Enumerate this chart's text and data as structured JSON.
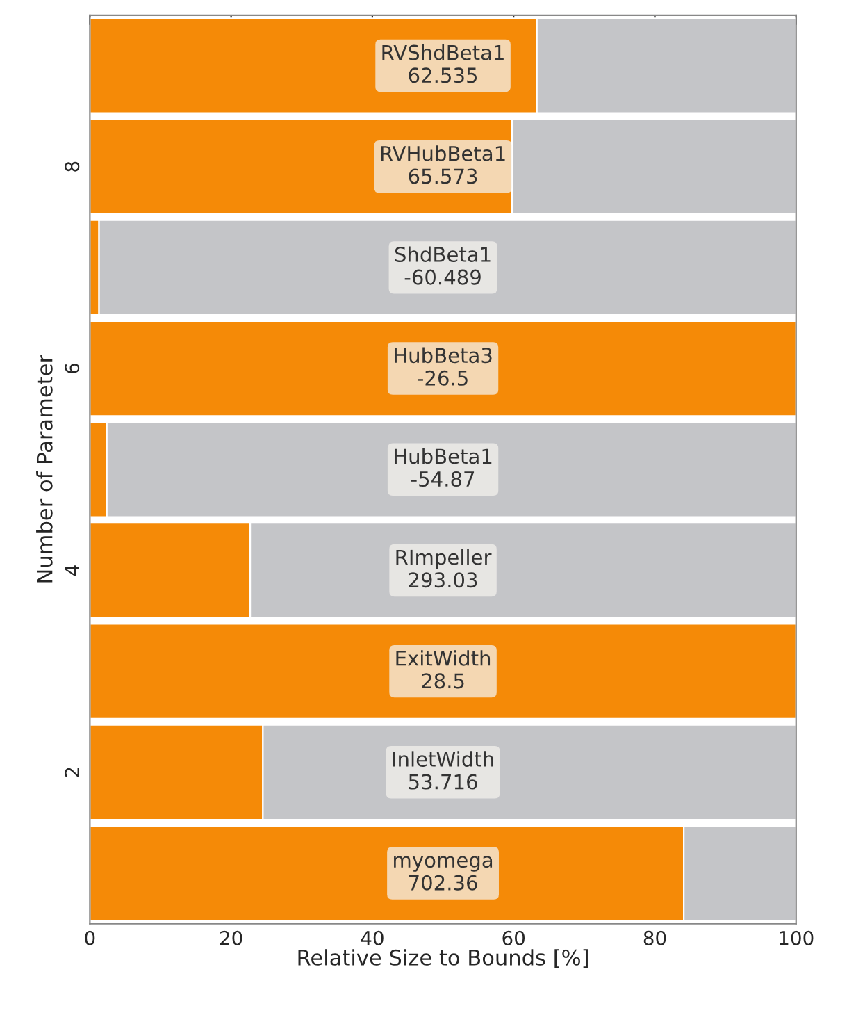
{
  "chart_data": {
    "type": "bar",
    "orientation": "horizontal",
    "stacked": true,
    "xlabel": "Relative Size to Bounds [%]",
    "ylabel": "Number of Parameter",
    "categories": [
      null,
      "8",
      null,
      "6",
      null,
      "4",
      null,
      "2",
      null
    ],
    "series": [
      {
        "color": "#f58a07",
        "values": [
          63.3,
          59.8,
          1.3,
          100,
          2.4,
          22.7,
          100,
          24.5,
          84.1
        ],
        "value_labels": [
          "RVShdBeta1\n62.535",
          "RVHubBeta1\n65.573",
          null,
          "HubBeta3\n-26.5",
          null,
          null,
          "ExitWidth\n28.5",
          null,
          "myomega\n702.36"
        ]
      },
      {
        "color": "#c4c5c8",
        "values": [
          36.7,
          40.2,
          98.7,
          0,
          97.6,
          77.3,
          0,
          75.5,
          15.9
        ],
        "value_labels": [
          null,
          null,
          "ShdBeta1\n-60.489",
          null,
          "HubBeta1\n-54.87",
          "RImpeller\n293.03",
          null,
          "InletWidth\n53.716",
          null
        ]
      }
    ],
    "xlim": [
      0,
      100
    ],
    "xticks": [
      0,
      20,
      40,
      60,
      80,
      100
    ],
    "grid": false
  }
}
